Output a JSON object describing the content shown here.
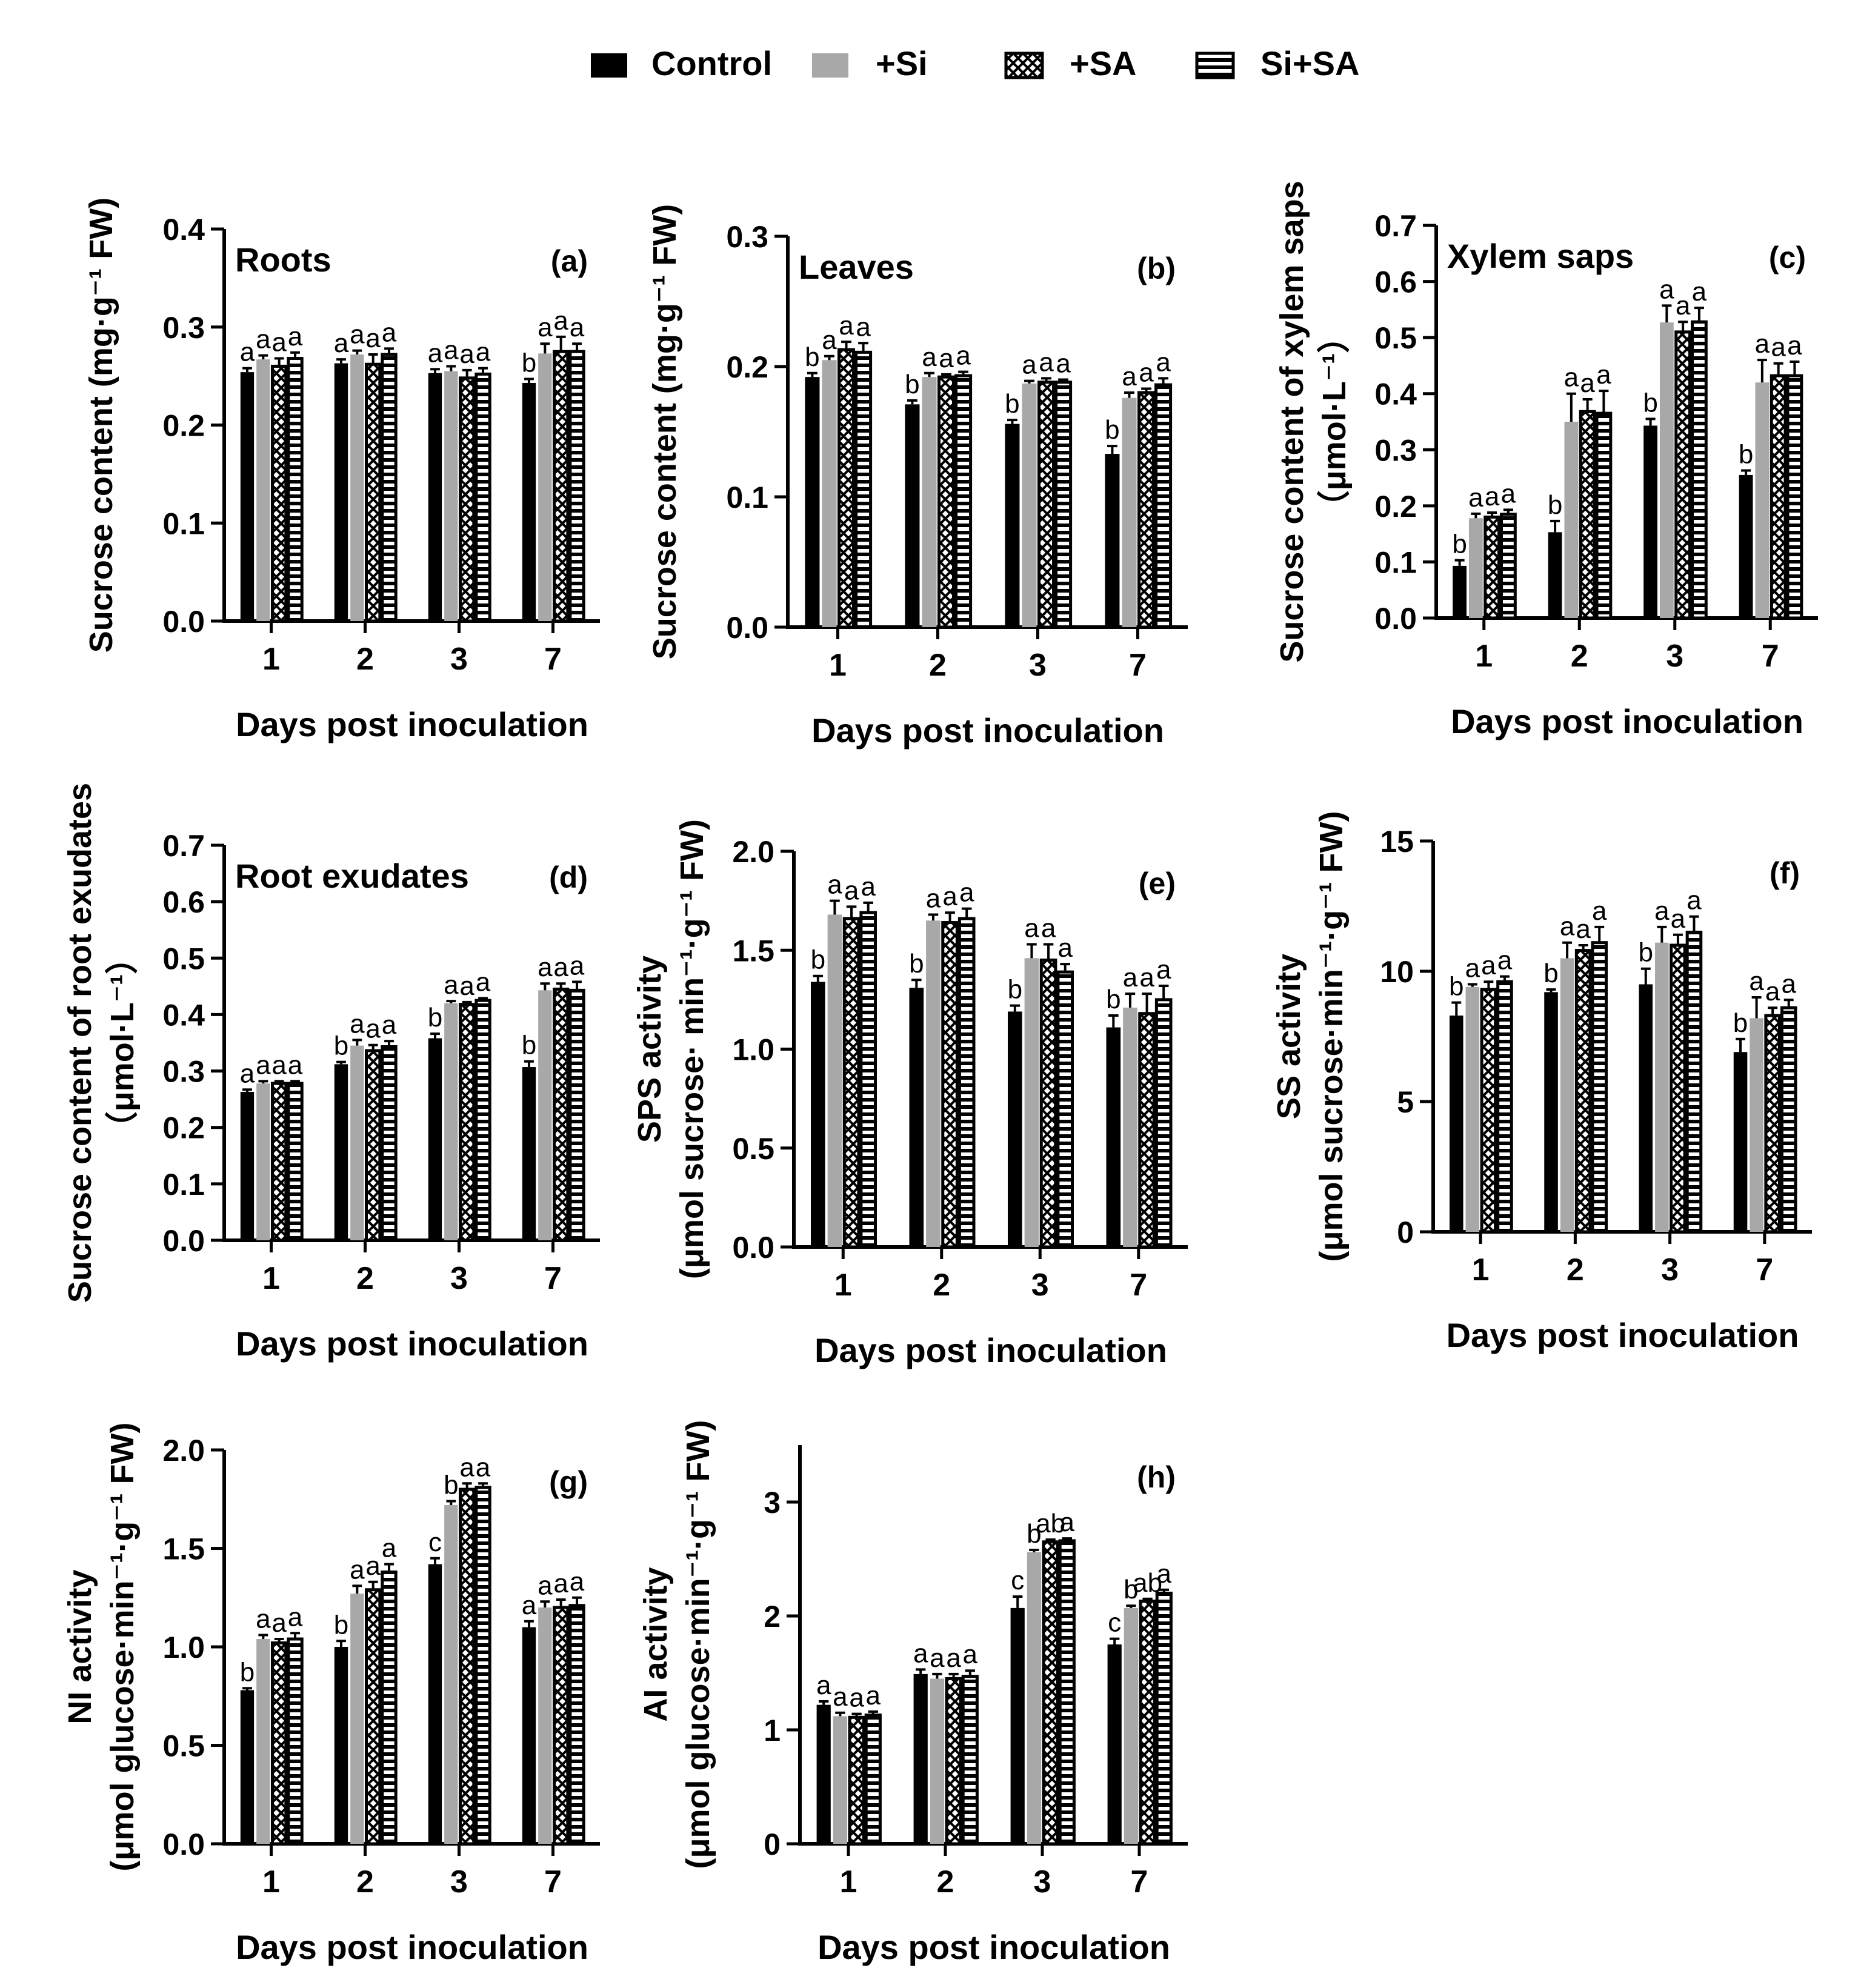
{
  "legend": {
    "position": "top-center",
    "items": [
      {
        "label": "Control",
        "fill": "solid-black"
      },
      {
        "label": "+Si",
        "fill": "solid-gray"
      },
      {
        "label": "+SA",
        "fill": "crosshatch"
      },
      {
        "label": "Si+SA",
        "fill": "horizontal-stripes"
      }
    ]
  },
  "colors": {
    "control": "#000000",
    "si": "#a8a8a8",
    "pattern_bg": "#ffffff",
    "pattern_fg": "#000000"
  },
  "chart_data": [
    {
      "id": "a",
      "type": "bar",
      "panel_label": "(a)",
      "inner_title": "Roots",
      "xlabel": "Days post inoculation",
      "ylabel": [
        "Sucrose content (mg·g⁻¹ FW)"
      ],
      "ylim": [
        0,
        0.4
      ],
      "yticks": [
        "0.0",
        "0.1",
        "0.2",
        "0.3",
        "0.4"
      ],
      "ytick_values": [
        0,
        0.1,
        0.2,
        0.3,
        0.4
      ],
      "categories": [
        "1",
        "2",
        "3",
        "7"
      ],
      "series": [
        {
          "name": "Control",
          "values": [
            0.254,
            0.263,
            0.253,
            0.243
          ],
          "errors": [
            0.004,
            0.004,
            0.004,
            0.004
          ],
          "letters": [
            "a",
            "a",
            "a",
            "b"
          ]
        },
        {
          "name": "+Si",
          "values": [
            0.267,
            0.272,
            0.255,
            0.273
          ],
          "errors": [
            0.004,
            0.004,
            0.005,
            0.01
          ],
          "letters": [
            "a",
            "a",
            "a",
            "a"
          ]
        },
        {
          "name": "+SA",
          "values": [
            0.26,
            0.262,
            0.248,
            0.275
          ],
          "errors": [
            0.008,
            0.01,
            0.008,
            0.015
          ],
          "letters": [
            "a",
            "a",
            "a",
            "a"
          ]
        },
        {
          "name": "Si+SA",
          "values": [
            0.268,
            0.272,
            0.252,
            0.275
          ],
          "errors": [
            0.006,
            0.006,
            0.006,
            0.008
          ],
          "letters": [
            "a",
            "a",
            "a",
            "a"
          ]
        }
      ]
    },
    {
      "id": "b",
      "type": "bar",
      "panel_label": "(b)",
      "inner_title": "Leaves",
      "xlabel": "Days post inoculation",
      "ylabel": [
        "Sucrose content (mg·g⁻¹ FW)"
      ],
      "ylim": [
        0,
        0.3
      ],
      "yticks": [
        "0.0",
        "0.1",
        "0.2",
        "0.3"
      ],
      "ytick_values": [
        0,
        0.1,
        0.2,
        0.3
      ],
      "categories": [
        "1",
        "2",
        "3",
        "7"
      ],
      "series": [
        {
          "name": "Control",
          "values": [
            0.192,
            0.171,
            0.156,
            0.133
          ],
          "errors": [
            0.003,
            0.003,
            0.003,
            0.006
          ],
          "letters": [
            "b",
            "b",
            "b",
            "b"
          ]
        },
        {
          "name": "+Si",
          "values": [
            0.205,
            0.192,
            0.187,
            0.176
          ],
          "errors": [
            0.003,
            0.003,
            0.002,
            0.004
          ],
          "letters": [
            "a",
            "a",
            "a",
            "a"
          ]
        },
        {
          "name": "+SA",
          "values": [
            0.213,
            0.192,
            0.188,
            0.18
          ],
          "errors": [
            0.006,
            0.002,
            0.003,
            0.003
          ],
          "letters": [
            "a",
            "a",
            "a",
            "a"
          ]
        },
        {
          "name": "Si+SA",
          "values": [
            0.211,
            0.193,
            0.188,
            0.186
          ],
          "errors": [
            0.007,
            0.003,
            0.002,
            0.005
          ],
          "letters": [
            "a",
            "a",
            "a",
            "a"
          ]
        }
      ]
    },
    {
      "id": "c",
      "type": "bar",
      "panel_label": "(c)",
      "inner_title": "Xylem saps",
      "xlabel": "Days post inoculation",
      "ylabel": [
        "Sucrose content of xylem saps",
        "（μmol·L⁻¹）"
      ],
      "ylim": [
        0,
        0.7
      ],
      "yticks": [
        "0.0",
        "0.1",
        "0.2",
        "0.3",
        "0.4",
        "0.5",
        "0.6",
        "0.7"
      ],
      "ytick_values": [
        0,
        0.1,
        0.2,
        0.3,
        0.4,
        0.5,
        0.6,
        0.7
      ],
      "categories": [
        "1",
        "2",
        "3",
        "7"
      ],
      "series": [
        {
          "name": "Control",
          "values": [
            0.093,
            0.153,
            0.343,
            0.255
          ],
          "errors": [
            0.01,
            0.02,
            0.012,
            0.008
          ],
          "letters": [
            "b",
            "b",
            "b",
            "b"
          ]
        },
        {
          "name": "+Si",
          "values": [
            0.178,
            0.35,
            0.527,
            0.42
          ],
          "errors": [
            0.008,
            0.05,
            0.03,
            0.04
          ],
          "letters": [
            "a",
            "a",
            "a",
            "a"
          ]
        },
        {
          "name": "+SA",
          "values": [
            0.18,
            0.368,
            0.51,
            0.432
          ],
          "errors": [
            0.008,
            0.022,
            0.018,
            0.022
          ],
          "letters": [
            "a",
            "a",
            "a",
            "a"
          ]
        },
        {
          "name": "Si+SA",
          "values": [
            0.185,
            0.365,
            0.528,
            0.432
          ],
          "errors": [
            0.008,
            0.04,
            0.025,
            0.025
          ],
          "letters": [
            "a",
            "a",
            "a",
            "a"
          ]
        }
      ]
    },
    {
      "id": "d",
      "type": "bar",
      "panel_label": "(d)",
      "inner_title": "Root  exudates",
      "xlabel": "Days post inoculation",
      "ylabel": [
        "Sucrose content of root exudates",
        "（μmol·L⁻¹）"
      ],
      "ylim": [
        0,
        0.7
      ],
      "yticks": [
        "0.0",
        "0.1",
        "0.2",
        "0.3",
        "0.4",
        "0.5",
        "0.6",
        "0.7"
      ],
      "ytick_values": [
        0,
        0.1,
        0.2,
        0.3,
        0.4,
        0.5,
        0.6,
        0.7
      ],
      "categories": [
        "1",
        "2",
        "3",
        "7"
      ],
      "series": [
        {
          "name": "Control",
          "values": [
            0.263,
            0.312,
            0.358,
            0.307
          ],
          "errors": [
            0.004,
            0.004,
            0.008,
            0.01
          ],
          "letters": [
            "a",
            "b",
            "b",
            "b"
          ]
        },
        {
          "name": "+Si",
          "values": [
            0.278,
            0.345,
            0.42,
            0.443
          ],
          "errors": [
            0.004,
            0.01,
            0.004,
            0.012
          ],
          "letters": [
            "a",
            "a",
            "a",
            "a"
          ]
        },
        {
          "name": "+SA",
          "values": [
            0.278,
            0.336,
            0.418,
            0.445
          ],
          "errors": [
            0.004,
            0.01,
            0.004,
            0.01
          ],
          "letters": [
            "a",
            "a",
            "a",
            "a"
          ]
        },
        {
          "name": "Si+SA",
          "values": [
            0.278,
            0.343,
            0.425,
            0.443
          ],
          "errors": [
            0.004,
            0.01,
            0.004,
            0.015
          ],
          "letters": [
            "a",
            "a",
            "a",
            "a"
          ]
        }
      ]
    },
    {
      "id": "e",
      "type": "bar",
      "panel_label": "(e)",
      "inner_title": "",
      "xlabel": "Days post inoculation",
      "ylabel": [
        "SPS activity",
        "(μmol sucrose· min⁻¹·g⁻¹ FW)"
      ],
      "ylim": [
        0,
        2.0
      ],
      "yticks": [
        "0.0",
        "0.5",
        "1.0",
        "1.5",
        "2.0"
      ],
      "ytick_values": [
        0,
        0.5,
        1.0,
        1.5,
        2.0
      ],
      "categories": [
        "1",
        "2",
        "3",
        "7"
      ],
      "series": [
        {
          "name": "Control",
          "values": [
            1.34,
            1.31,
            1.19,
            1.11
          ],
          "errors": [
            0.03,
            0.04,
            0.03,
            0.06
          ],
          "letters": [
            "b",
            "b",
            "b",
            "b"
          ]
        },
        {
          "name": "+Si",
          "values": [
            1.68,
            1.65,
            1.46,
            1.21
          ],
          "errors": [
            0.07,
            0.03,
            0.07,
            0.07
          ],
          "letters": [
            "a",
            "a",
            "a",
            "a"
          ]
        },
        {
          "name": "+SA",
          "values": [
            1.66,
            1.64,
            1.45,
            1.18
          ],
          "errors": [
            0.06,
            0.05,
            0.08,
            0.1
          ],
          "letters": [
            "a",
            "a",
            "a",
            "a"
          ]
        },
        {
          "name": "Si+SA",
          "values": [
            1.69,
            1.66,
            1.39,
            1.25
          ],
          "errors": [
            0.05,
            0.05,
            0.04,
            0.07
          ],
          "letters": [
            "a",
            "a",
            "a",
            "a"
          ]
        }
      ]
    },
    {
      "id": "f",
      "type": "bar",
      "panel_label": "(f)",
      "inner_title": "",
      "xlabel": "Days post inoculation",
      "ylabel": [
        "SS activity",
        "(μmol sucrose·min⁻¹·g⁻¹ FW)"
      ],
      "ylim": [
        0,
        15
      ],
      "yticks": [
        "0",
        "5",
        "10",
        "15"
      ],
      "ytick_values": [
        0,
        5,
        10,
        15
      ],
      "categories": [
        "1",
        "2",
        "3",
        "7"
      ],
      "series": [
        {
          "name": "Control",
          "values": [
            8.3,
            9.2,
            9.5,
            6.9
          ],
          "errors": [
            0.5,
            0.1,
            0.6,
            0.5
          ],
          "letters": [
            "b",
            "b",
            "b",
            "b"
          ]
        },
        {
          "name": "+Si",
          "values": [
            9.4,
            10.5,
            11.1,
            8.2
          ],
          "errors": [
            0.1,
            0.6,
            0.6,
            0.8
          ],
          "letters": [
            "a",
            "a",
            "a",
            "a"
          ]
        },
        {
          "name": "+SA",
          "values": [
            9.3,
            10.8,
            11.0,
            8.3
          ],
          "errors": [
            0.3,
            0.2,
            0.4,
            0.3
          ],
          "letters": [
            "a",
            "a",
            "a",
            "a"
          ]
        },
        {
          "name": "Si+SA",
          "values": [
            9.6,
            11.1,
            11.5,
            8.6
          ],
          "errors": [
            0.2,
            0.6,
            0.6,
            0.3
          ],
          "letters": [
            "a",
            "a",
            "a",
            "a"
          ]
        }
      ]
    },
    {
      "id": "g",
      "type": "bar",
      "panel_label": "(g)",
      "inner_title": "",
      "xlabel": "Days post inoculation",
      "ylabel": [
        "NI activity",
        "(μmol glucose·min⁻¹·g⁻¹ FW)"
      ],
      "ylim": [
        0,
        2.0
      ],
      "yticks": [
        "0.0",
        "0.5",
        "1.0",
        "1.5",
        "2.0"
      ],
      "ytick_values": [
        0,
        0.5,
        1.0,
        1.5,
        2.0
      ],
      "categories": [
        "1",
        "2",
        "3",
        "7"
      ],
      "series": [
        {
          "name": "Control",
          "values": [
            0.78,
            1.0,
            1.42,
            1.1
          ],
          "errors": [
            0.01,
            0.03,
            0.03,
            0.03
          ],
          "letters": [
            "b",
            "b",
            "c",
            "a"
          ]
        },
        {
          "name": "+Si",
          "values": [
            1.04,
            1.27,
            1.72,
            1.2
          ],
          "errors": [
            0.02,
            0.04,
            0.02,
            0.03
          ],
          "letters": [
            "a",
            "a",
            "b",
            "a"
          ]
        },
        {
          "name": "+SA",
          "values": [
            1.02,
            1.29,
            1.8,
            1.2
          ],
          "errors": [
            0.02,
            0.04,
            0.03,
            0.04
          ],
          "letters": [
            "a",
            "a",
            "a",
            "a"
          ]
        },
        {
          "name": "Si+SA",
          "values": [
            1.04,
            1.38,
            1.81,
            1.21
          ],
          "errors": [
            0.03,
            0.04,
            0.02,
            0.04
          ],
          "letters": [
            "a",
            "a",
            "a",
            "a"
          ]
        }
      ]
    },
    {
      "id": "h",
      "type": "bar",
      "panel_label": "(h)",
      "inner_title": "",
      "xlabel": "Days post inoculation",
      "ylabel": [
        "AI activity",
        "(μmol glucose·min⁻¹·g⁻¹ FW)"
      ],
      "ylim": [
        0,
        3.5
      ],
      "yticks": [
        "0",
        "1",
        "2",
        "3"
      ],
      "ytick_values": [
        0,
        1,
        2,
        3
      ],
      "categories": [
        "1",
        "2",
        "3",
        "7"
      ],
      "series": [
        {
          "name": "Control",
          "values": [
            1.22,
            1.49,
            2.07,
            1.75
          ],
          "errors": [
            0.03,
            0.04,
            0.1,
            0.05
          ],
          "letters": [
            "a",
            "a",
            "c",
            "c"
          ]
        },
        {
          "name": "+Si",
          "values": [
            1.12,
            1.45,
            2.56,
            2.07
          ],
          "errors": [
            0.03,
            0.04,
            0.02,
            0.02
          ],
          "letters": [
            "a",
            "a",
            "b",
            "b"
          ]
        },
        {
          "name": "+SA",
          "values": [
            1.11,
            1.45,
            2.65,
            2.13
          ],
          "errors": [
            0.03,
            0.04,
            0.02,
            0.02
          ],
          "letters": [
            "a",
            "a",
            "ab",
            "ab"
          ]
        },
        {
          "name": "Si+SA",
          "values": [
            1.13,
            1.47,
            2.66,
            2.2
          ],
          "errors": [
            0.03,
            0.05,
            0.02,
            0.03
          ],
          "letters": [
            "a",
            "a",
            "a",
            "a"
          ]
        }
      ]
    }
  ]
}
